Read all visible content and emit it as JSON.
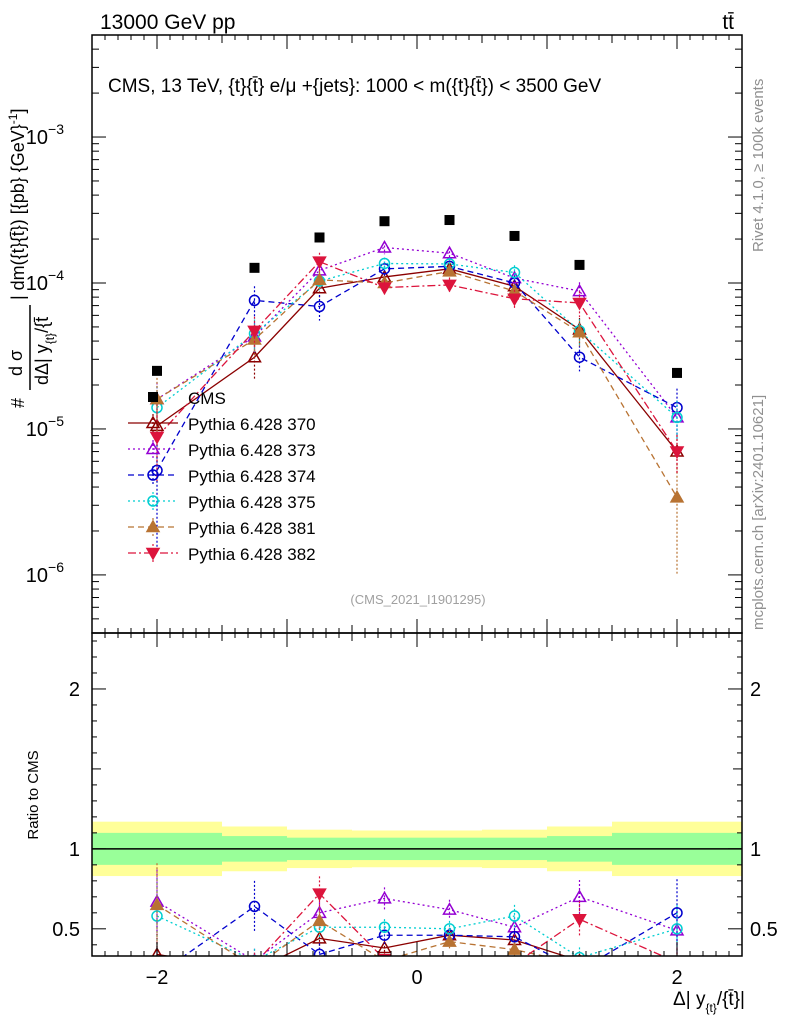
{
  "header": {
    "energy_label": "13000 GeV pp",
    "process_label": "tt̄",
    "plot_title": "CMS, 13 TeV, {t}{t̄} e/μ +{jets}: 1000 < m({t}{t̄}) < 3500 GeV",
    "analysis_id": "(CMS_2021_I1901295)",
    "rivet_label": "Rivet 4.1.0, ≥ 100k events",
    "site_label": "mcplots.cern.ch [arXiv:2401.10621]"
  },
  "chart_data": {
    "type": "line",
    "title": "CMS, 13 TeV, {t}{t̄} e/μ +{jets}: 1000 < m({t}{t̄}) < 3500 GeV",
    "xlabel": "Δ| y_{t}/{t̄}|",
    "ylabel": "d²σ / dΔ|y_t/t̄| dm({t}{t̄}) [{pb} {GeV}⁻¹]",
    "ylabel_parts": {
      "hash": "#",
      "numerator": "d σ",
      "d_part": "d",
      "delta_part": "Δ| y",
      "sub": "{t}",
      "rest": "/{t̄",
      "right": "| dm({t}{t̄}) [{pb} {GeV}",
      "sup": "-1",
      "close": "]"
    },
    "ratio_ylabel": "Ratio to CMS",
    "xlim": [
      -2.5,
      2.5
    ],
    "ylim": [
      4e-07,
      0.005
    ],
    "ratio_ylim": [
      0.33,
      2.35
    ],
    "x_ticks": [
      -2,
      0,
      2
    ],
    "x_tick_labels": [
      "−2",
      "0",
      "2"
    ],
    "y_ticks": [
      1e-06,
      1e-05,
      0.0001,
      0.001
    ],
    "y_tick_labels": [
      {
        "base": "10",
        "exp": "−6"
      },
      {
        "base": "10",
        "exp": "−5"
      },
      {
        "base": "10",
        "exp": "−4"
      },
      {
        "base": "10",
        "exp": "−3"
      }
    ],
    "ratio_ticks": [
      0.5,
      1,
      2
    ],
    "ratio_tick_labels": [
      "0.5",
      "1",
      "2"
    ],
    "bin_edges": [
      -2.5,
      -1.5,
      -1.0,
      -0.5,
      0.0,
      0.5,
      1.0,
      1.5,
      2.5
    ],
    "x": [
      -2.0,
      -1.25,
      -0.75,
      -0.25,
      0.25,
      0.75,
      1.25,
      2.0
    ],
    "data": {
      "name": "CMS",
      "values": [
        2.5e-05,
        0.000127,
        0.000205,
        0.000265,
        0.00027,
        0.00021,
        0.000133,
        2.42e-05
      ],
      "band_inner": [
        0.1,
        0.08,
        0.07,
        0.07,
        0.07,
        0.07,
        0.08,
        0.1
      ],
      "band_outer": [
        0.17,
        0.14,
        0.12,
        0.115,
        0.115,
        0.12,
        0.14,
        0.17
      ]
    },
    "series": [
      {
        "name": "Pythia 6.428 370",
        "color": "#8b0000",
        "dash": "",
        "marker": "tri-up-open",
        "values": [
          1.05e-05,
          3.1e-05,
          9.2e-05,
          0.00011,
          0.000125,
          9.5e-05,
          4.8e-05,
          7e-06
        ],
        "err": [
          0.6,
          0.3,
          0.15,
          0.1,
          0.1,
          0.12,
          0.2,
          0.3
        ],
        "ratio": [
          0.34,
          0.24,
          0.44,
          0.38,
          0.46,
          0.43,
          0.3,
          0.29
        ]
      },
      {
        "name": "Pythia 6.428 373",
        "color": "#9400d3",
        "dash": "2,3",
        "marker": "tri-up-open",
        "values": [
          1.6e-05,
          4.3e-05,
          0.000122,
          0.000175,
          0.00016,
          0.000108,
          8.8e-05,
          1.2e-05
        ],
        "err": [
          0.3,
          0.25,
          0.15,
          0.1,
          0.1,
          0.12,
          0.15,
          0.3
        ],
        "ratio": [
          0.67,
          0.3,
          0.6,
          0.69,
          0.62,
          0.51,
          0.7,
          0.49
        ]
      },
      {
        "name": "Pythia 6.428 374",
        "color": "#0000cd",
        "dash": "6,4",
        "marker": "circle-open",
        "values": [
          5.2e-06,
          7.6e-05,
          6.9e-05,
          0.000125,
          0.00013,
          0.0001,
          3.1e-05,
          1.4e-05
        ],
        "err": [
          0.7,
          0.25,
          0.2,
          0.12,
          0.1,
          0.12,
          0.2,
          0.35
        ],
        "ratio": [
          0.21,
          0.64,
          0.34,
          0.46,
          0.46,
          0.45,
          0.24,
          0.6
        ]
      },
      {
        "name": "Pythia 6.428 375",
        "color": "#00ced1",
        "dash": "2,3",
        "marker": "circle-open",
        "values": [
          1.4e-05,
          4.5e-05,
          0.000103,
          0.000136,
          0.000135,
          0.000118,
          4.7e-05,
          1.2e-05
        ],
        "err": [
          0.4,
          0.25,
          0.15,
          0.1,
          0.1,
          0.12,
          0.2,
          0.3
        ],
        "ratio": [
          0.58,
          0.3,
          0.51,
          0.51,
          0.5,
          0.58,
          0.32,
          0.5
        ]
      },
      {
        "name": "Pythia 6.428 381",
        "color": "#b87333",
        "dash": "6,4",
        "marker": "tri-up-filled",
        "values": [
          1.6e-05,
          4.1e-05,
          0.000105,
          0.0001,
          0.00012,
          8.8e-05,
          4.6e-05,
          3.4e-06
        ],
        "err": [
          0.4,
          0.25,
          0.15,
          0.1,
          0.1,
          0.12,
          0.2,
          0.7
        ],
        "ratio": [
          0.65,
          0.26,
          0.55,
          0.3,
          0.42,
          0.37,
          0.28,
          0.14
        ]
      },
      {
        "name": "Pythia 6.428 382",
        "color": "#dc143c",
        "dash": "8,3,2,3",
        "marker": "tri-down-filled",
        "values": [
          8.8e-06,
          4.7e-05,
          0.00014,
          9.3e-05,
          9.7e-05,
          7.8e-05,
          7.3e-05,
          7e-06
        ],
        "err": [
          0.5,
          0.25,
          0.15,
          0.12,
          0.12,
          0.15,
          0.2,
          0.3
        ],
        "ratio": [
          0.28,
          0.28,
          0.72,
          0.31,
          0.28,
          0.28,
          0.56,
          0.29
        ]
      }
    ]
  }
}
